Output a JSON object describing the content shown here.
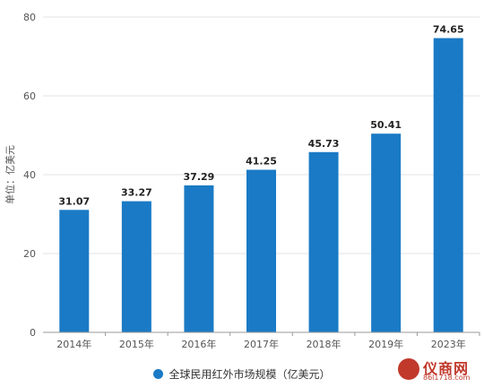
{
  "chart_data": {
    "type": "bar",
    "categories": [
      "2014年",
      "2015年",
      "2016年",
      "2017年",
      "2018年",
      "2019年",
      "2023年"
    ],
    "values": [
      31.07,
      33.27,
      37.29,
      41.25,
      45.73,
      50.41,
      74.65
    ],
    "value_labels": [
      "31.07",
      "33.27",
      "37.29",
      "41.25",
      "45.73",
      "50.41",
      "74.65"
    ],
    "series_name": "全球民用红外市场规模（亿美元）",
    "ylabel": "单位：亿美元",
    "ylim": [
      0,
      80
    ],
    "yticks": [
      0,
      20,
      40,
      60,
      80
    ],
    "grid": true,
    "legend_position": "bottom",
    "bar_color": "#1a7ac5"
  },
  "watermark": {
    "text": "仪商网",
    "url": "86l1718.com"
  }
}
